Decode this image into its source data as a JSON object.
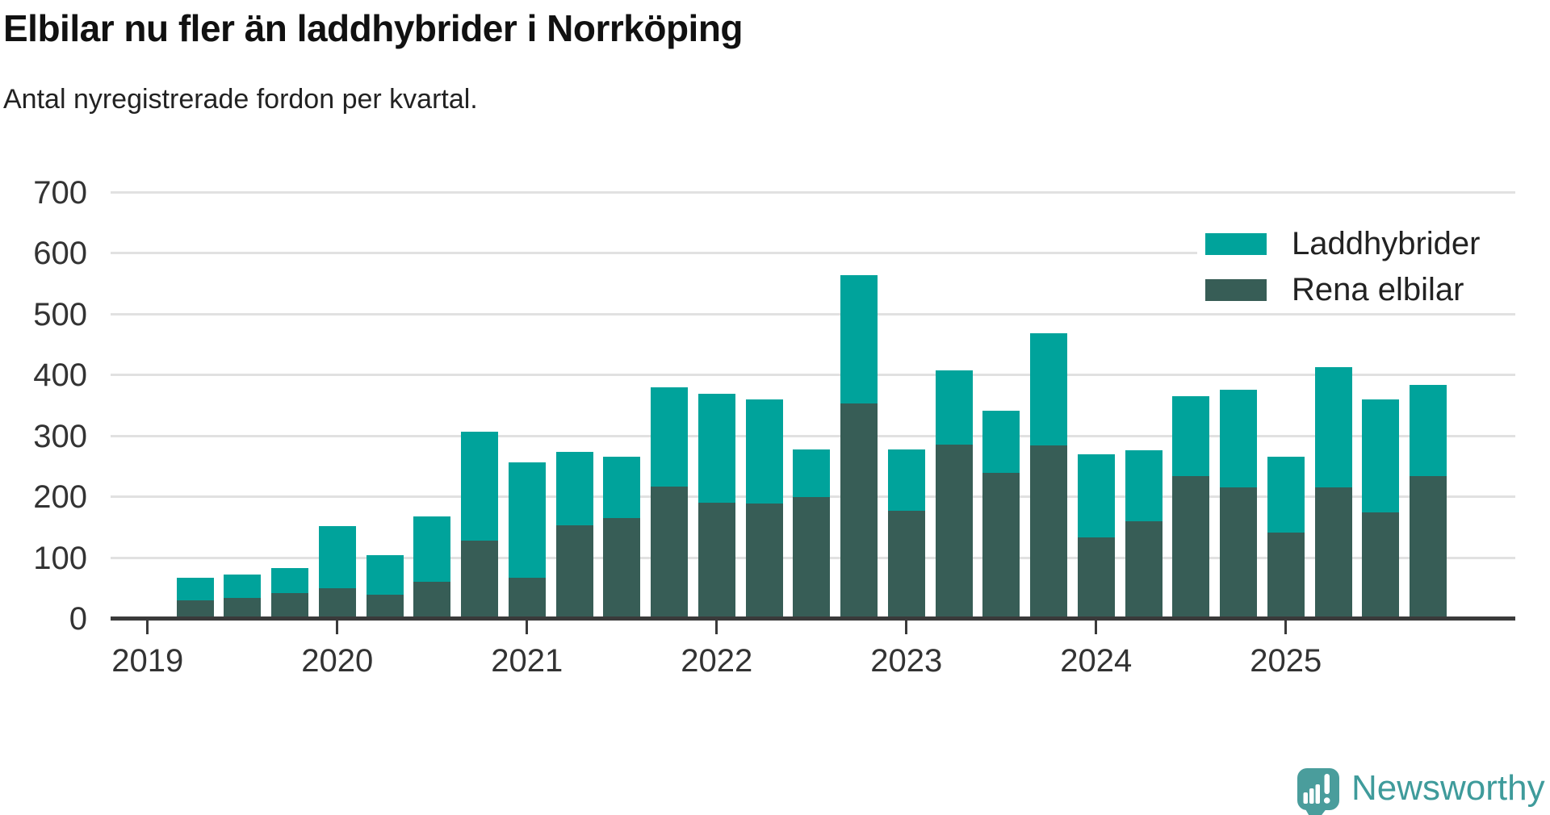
{
  "title": "Elbilar nu fler än laddhybrider i Norrköping",
  "subtitle": "Antal nyregistrerade fordon per kvartal.",
  "colors": {
    "laddhybrider": "#00a39b",
    "rena_elbilar": "#375d56",
    "grid": "#e1e1e1",
    "axis": "#3a3a3a",
    "axis_text": "#333333",
    "title_text": "#111111",
    "brand_teal": "#4a9d9c",
    "brand_text": "#3f9b9b"
  },
  "legend": [
    {
      "label": "Laddhybrider",
      "color": "#00a39b"
    },
    {
      "label": "Rena elbilar",
      "color": "#375d56"
    }
  ],
  "branding": {
    "logo_text": "Newsworthy",
    "logo_icon": "newsworthy-speech-bubble-chart-icon"
  },
  "chart_data": {
    "type": "bar",
    "stacked": true,
    "title": "Elbilar nu fler än laddhybrider i Norrköping",
    "subtitle": "Antal nyregistrerade fordon per kvartal.",
    "categories": [
      "2019 Q2",
      "2019 Q3",
      "2019 Q4",
      "2020 Q1",
      "2020 Q2",
      "2020 Q3",
      "2020 Q4",
      "2021 Q1",
      "2021 Q2",
      "2021 Q3",
      "2021 Q4",
      "2022 Q1",
      "2022 Q2",
      "2022 Q3",
      "2022 Q4",
      "2023 Q1",
      "2023 Q2",
      "2023 Q3",
      "2023 Q4",
      "2024 Q1",
      "2024 Q2",
      "2024 Q3",
      "2024 Q4",
      "2025 Q1",
      "2025 Q2",
      "2025 Q3",
      "2025 Q4"
    ],
    "series": [
      {
        "name": "Rena elbilar",
        "color": "#375d56",
        "stack_position": "bottom",
        "values": [
          30,
          35,
          42,
          51,
          40,
          61,
          129,
          68,
          154,
          166,
          218,
          191,
          189,
          200,
          354,
          178,
          287,
          240,
          285,
          134,
          161,
          235,
          216,
          142,
          216,
          175,
          235
        ]
      },
      {
        "name": "Laddhybrider",
        "color": "#00a39b",
        "stack_position": "top",
        "values": [
          37,
          38,
          41,
          101,
          65,
          108,
          178,
          189,
          121,
          100,
          162,
          179,
          171,
          78,
          211,
          100,
          121,
          102,
          185,
          137,
          116,
          131,
          160,
          124,
          198,
          185,
          149
        ]
      }
    ],
    "stack_totals": [
      67,
      73,
      83,
      152,
      105,
      169,
      307,
      257,
      275,
      266,
      380,
      370,
      360,
      278,
      565,
      278,
      408,
      342,
      470,
      271,
      277,
      366,
      376,
      266,
      414,
      360,
      384
    ],
    "ylabel": "",
    "xlabel": "",
    "ylim": [
      0,
      700
    ],
    "yticks": [
      0,
      100,
      200,
      300,
      400,
      500,
      600,
      700
    ],
    "year_ticks": [
      "2019",
      "2020",
      "2021",
      "2022",
      "2023",
      "2024",
      "2025"
    ],
    "grid": true,
    "legend_position": "top-right"
  }
}
